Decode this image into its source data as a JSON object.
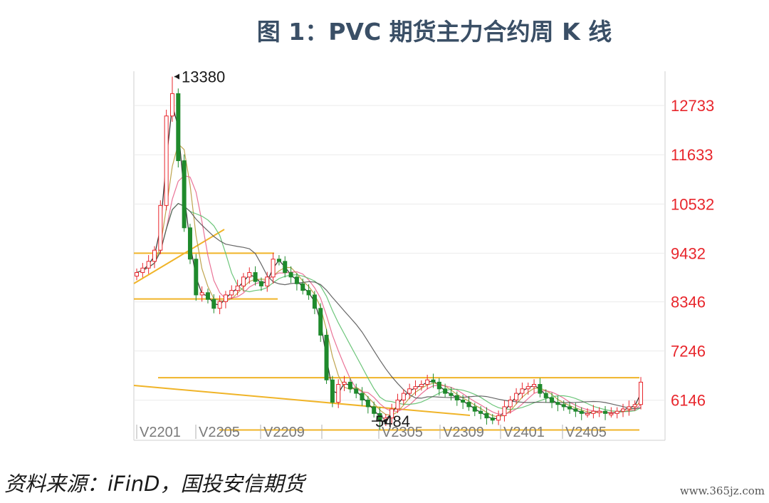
{
  "title": "图 1：PVC 期货主力合约周 K 线",
  "source": "资料来源：iFinD，国投安信期货",
  "watermark": "www.365jz.com",
  "chart_data": {
    "type": "candlestick",
    "title": "图 1：PVC 期货主力合约周 K 线",
    "yaxis": {
      "side": "right",
      "ticks": [
        6146,
        7246,
        8346,
        9432,
        10532,
        11633,
        12733
      ],
      "tick_color": "#e8262c",
      "range": [
        5250,
        13500
      ]
    },
    "xaxis": {
      "ticks": [
        "V2201",
        "V2205",
        "V2209",
        "",
        "V2305",
        "V2309",
        "V2401",
        "V2405"
      ]
    },
    "annotations": [
      {
        "text": "13380",
        "value": 13380
      },
      {
        "text": "5484",
        "value": 5484
      }
    ],
    "horizontal_lines": [
      9432,
      8410,
      6650,
      5480
    ],
    "colors": {
      "up": "#e8262c",
      "down": "#1f8a2c",
      "support": "#f0b428",
      "ma5": "#1a1a1a",
      "ma10": "#b89a3c",
      "ma20": "#e8648c",
      "ma40": "#5cbf6c",
      "ma60": "#555555"
    },
    "series": [
      {
        "name": "close",
        "values": [
          9000,
          9100,
          9250,
          9500,
          10500,
          12500,
          13000,
          11500,
          10000,
          9300,
          8500,
          8550,
          8400,
          8200,
          8350,
          8500,
          8600,
          8700,
          8900,
          9000,
          8800,
          8700,
          8900,
          9300,
          9250,
          9000,
          8900,
          8750,
          8600,
          8500,
          8200,
          7600,
          6600,
          6100,
          6500,
          6550,
          6400,
          6300,
          6150,
          6000,
          5850,
          5700,
          5750,
          5950,
          6150,
          6300,
          6400,
          6450,
          6500,
          6600,
          6550,
          6400,
          6300,
          6250,
          6150,
          6100,
          6000,
          5900,
          5850,
          5750,
          5700,
          5800,
          6000,
          6150,
          6300,
          6400,
          6450,
          6500,
          6300,
          6200,
          6100,
          6050,
          6000,
          5950,
          5900,
          5850,
          5850,
          5900,
          5900,
          5850,
          5850,
          5900,
          5950,
          6000,
          6050,
          6550
        ]
      }
    ]
  }
}
